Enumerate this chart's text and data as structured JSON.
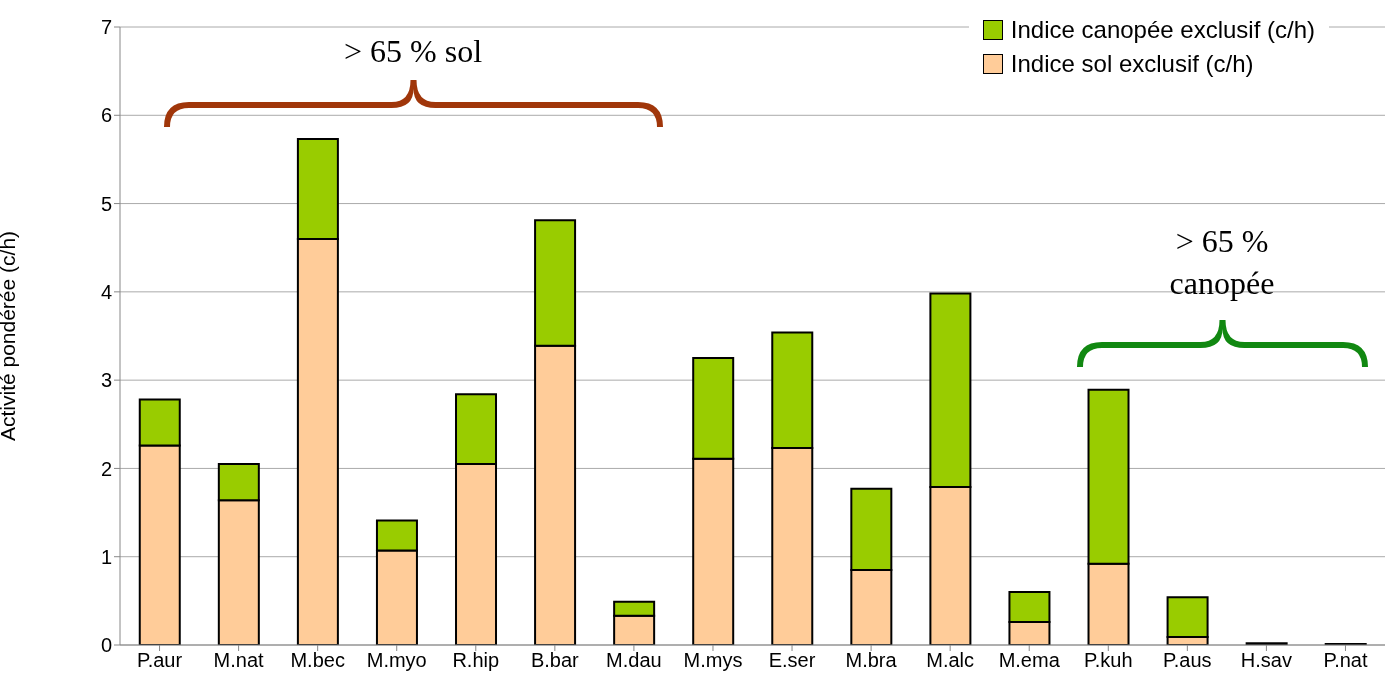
{
  "chart_data": {
    "type": "bar",
    "stacked": true,
    "ylabel": "Activité pondérée (c/h)",
    "categories": [
      "P.aur",
      "M.nat",
      "M.bec",
      "M.myo",
      "R.hip",
      "B.bar",
      "M.dau",
      "M.mys",
      "E.ser",
      "M.bra",
      "M.alc",
      "M.ema",
      "P.kuh",
      "P.aus",
      "H.sav",
      "P.nat"
    ],
    "series": [
      {
        "name": "Indice sol exclusif (c/h)",
        "color": "#ffcc99",
        "values": [
          2.26,
          1.64,
          4.6,
          1.07,
          2.05,
          3.39,
          0.33,
          2.11,
          2.23,
          0.85,
          1.79,
          0.26,
          0.92,
          0.09,
          0,
          null
        ]
      },
      {
        "name": "Indice canopée exclusif (c/h)",
        "color": "#99cc00",
        "values": [
          0.52,
          0.41,
          1.13,
          0.34,
          0.79,
          1.42,
          0.16,
          1.14,
          1.31,
          0.92,
          2.19,
          0.34,
          1.97,
          0.45,
          0.02,
          0.01
        ]
      }
    ],
    "ylim": [
      0,
      7
    ],
    "yticks": [
      0,
      1,
      2,
      3,
      4,
      5,
      6,
      7
    ],
    "grid": "y",
    "legend": "top right",
    "annotations": [
      "> 65 % sol",
      "> 65 % canopée"
    ]
  }
}
